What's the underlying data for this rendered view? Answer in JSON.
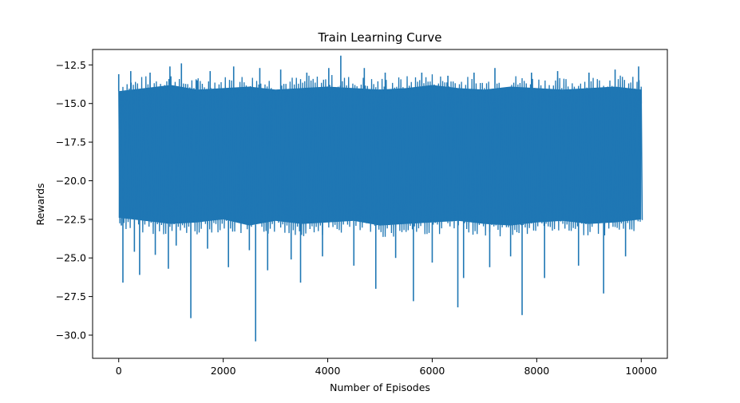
{
  "chart_data": {
    "type": "line",
    "title": "Train Learning Curve",
    "xlabel": "Number of Episodes",
    "ylabel": "Rewards",
    "xlim": [
      -500,
      10500
    ],
    "ylim": [
      -31.5,
      -11.5
    ],
    "xticks": [
      0,
      2000,
      4000,
      6000,
      8000,
      10000
    ],
    "yticks": [
      -12.5,
      -15.0,
      -17.5,
      -20.0,
      -22.5,
      -25.0,
      -27.5,
      -30.0
    ],
    "grid": false,
    "legend": "none",
    "color": "#1f77b4",
    "series": [
      {
        "name": "",
        "envelope": {
          "x": [
            0,
            500,
            1000,
            1500,
            2000,
            2500,
            3000,
            3500,
            4000,
            4500,
            5000,
            5500,
            6000,
            6500,
            7000,
            7500,
            8000,
            8500,
            9000,
            9500,
            10000
          ],
          "upper": [
            -14.2,
            -14.0,
            -13.8,
            -14.1,
            -14.0,
            -13.9,
            -14.1,
            -14.0,
            -13.9,
            -14.0,
            -14.1,
            -14.0,
            -13.8,
            -14.0,
            -14.1,
            -13.9,
            -14.0,
            -14.1,
            -14.0,
            -13.9,
            -14.1
          ],
          "lower": [
            -22.4,
            -22.6,
            -22.8,
            -22.7,
            -22.5,
            -22.9,
            -22.6,
            -22.8,
            -22.7,
            -22.6,
            -22.9,
            -22.8,
            -22.7,
            -22.6,
            -22.8,
            -22.9,
            -22.7,
            -22.6,
            -22.8,
            -22.7,
            -22.5
          ]
        },
        "spikes": [
          {
            "x": 0,
            "y": -13.1
          },
          {
            "x": 50,
            "y": -22.9
          },
          {
            "x": 80,
            "y": -26.6
          },
          {
            "x": 120,
            "y": -14.2
          },
          {
            "x": 230,
            "y": -12.9
          },
          {
            "x": 300,
            "y": -24.6
          },
          {
            "x": 400,
            "y": -26.1
          },
          {
            "x": 600,
            "y": -13.0
          },
          {
            "x": 700,
            "y": -24.8
          },
          {
            "x": 950,
            "y": -25.7
          },
          {
            "x": 980,
            "y": -12.6
          },
          {
            "x": 1100,
            "y": -24.2
          },
          {
            "x": 1200,
            "y": -12.4
          },
          {
            "x": 1380,
            "y": -28.9
          },
          {
            "x": 1500,
            "y": -13.5
          },
          {
            "x": 1700,
            "y": -24.4
          },
          {
            "x": 1750,
            "y": -12.9
          },
          {
            "x": 2100,
            "y": -25.6
          },
          {
            "x": 2200,
            "y": -12.6
          },
          {
            "x": 2500,
            "y": -24.5
          },
          {
            "x": 2620,
            "y": -30.4
          },
          {
            "x": 2700,
            "y": -12.7
          },
          {
            "x": 2850,
            "y": -25.8
          },
          {
            "x": 3100,
            "y": -12.8
          },
          {
            "x": 3300,
            "y": -25.1
          },
          {
            "x": 3480,
            "y": -26.6
          },
          {
            "x": 3600,
            "y": -13.0
          },
          {
            "x": 3900,
            "y": -24.9
          },
          {
            "x": 4020,
            "y": -12.7
          },
          {
            "x": 4250,
            "y": -11.9
          },
          {
            "x": 4500,
            "y": -25.5
          },
          {
            "x": 4700,
            "y": -12.7
          },
          {
            "x": 4920,
            "y": -27.0
          },
          {
            "x": 5100,
            "y": -13.0
          },
          {
            "x": 5300,
            "y": -25.0
          },
          {
            "x": 5640,
            "y": -27.8
          },
          {
            "x": 5800,
            "y": -13.0
          },
          {
            "x": 6000,
            "y": -25.3
          },
          {
            "x": 6300,
            "y": -13.2
          },
          {
            "x": 6490,
            "y": -28.2
          },
          {
            "x": 6600,
            "y": -26.3
          },
          {
            "x": 6800,
            "y": -13.0
          },
          {
            "x": 7100,
            "y": -25.6
          },
          {
            "x": 7200,
            "y": -12.7
          },
          {
            "x": 7500,
            "y": -24.9
          },
          {
            "x": 7720,
            "y": -28.7
          },
          {
            "x": 7900,
            "y": -13.0
          },
          {
            "x": 8150,
            "y": -26.3
          },
          {
            "x": 8400,
            "y": -12.9
          },
          {
            "x": 8800,
            "y": -25.5
          },
          {
            "x": 9000,
            "y": -13.0
          },
          {
            "x": 9280,
            "y": -27.3
          },
          {
            "x": 9500,
            "y": -12.8
          },
          {
            "x": 9700,
            "y": -24.9
          },
          {
            "x": 9950,
            "y": -12.6
          },
          {
            "x": 10000,
            "y": -15.0
          }
        ]
      }
    ]
  }
}
